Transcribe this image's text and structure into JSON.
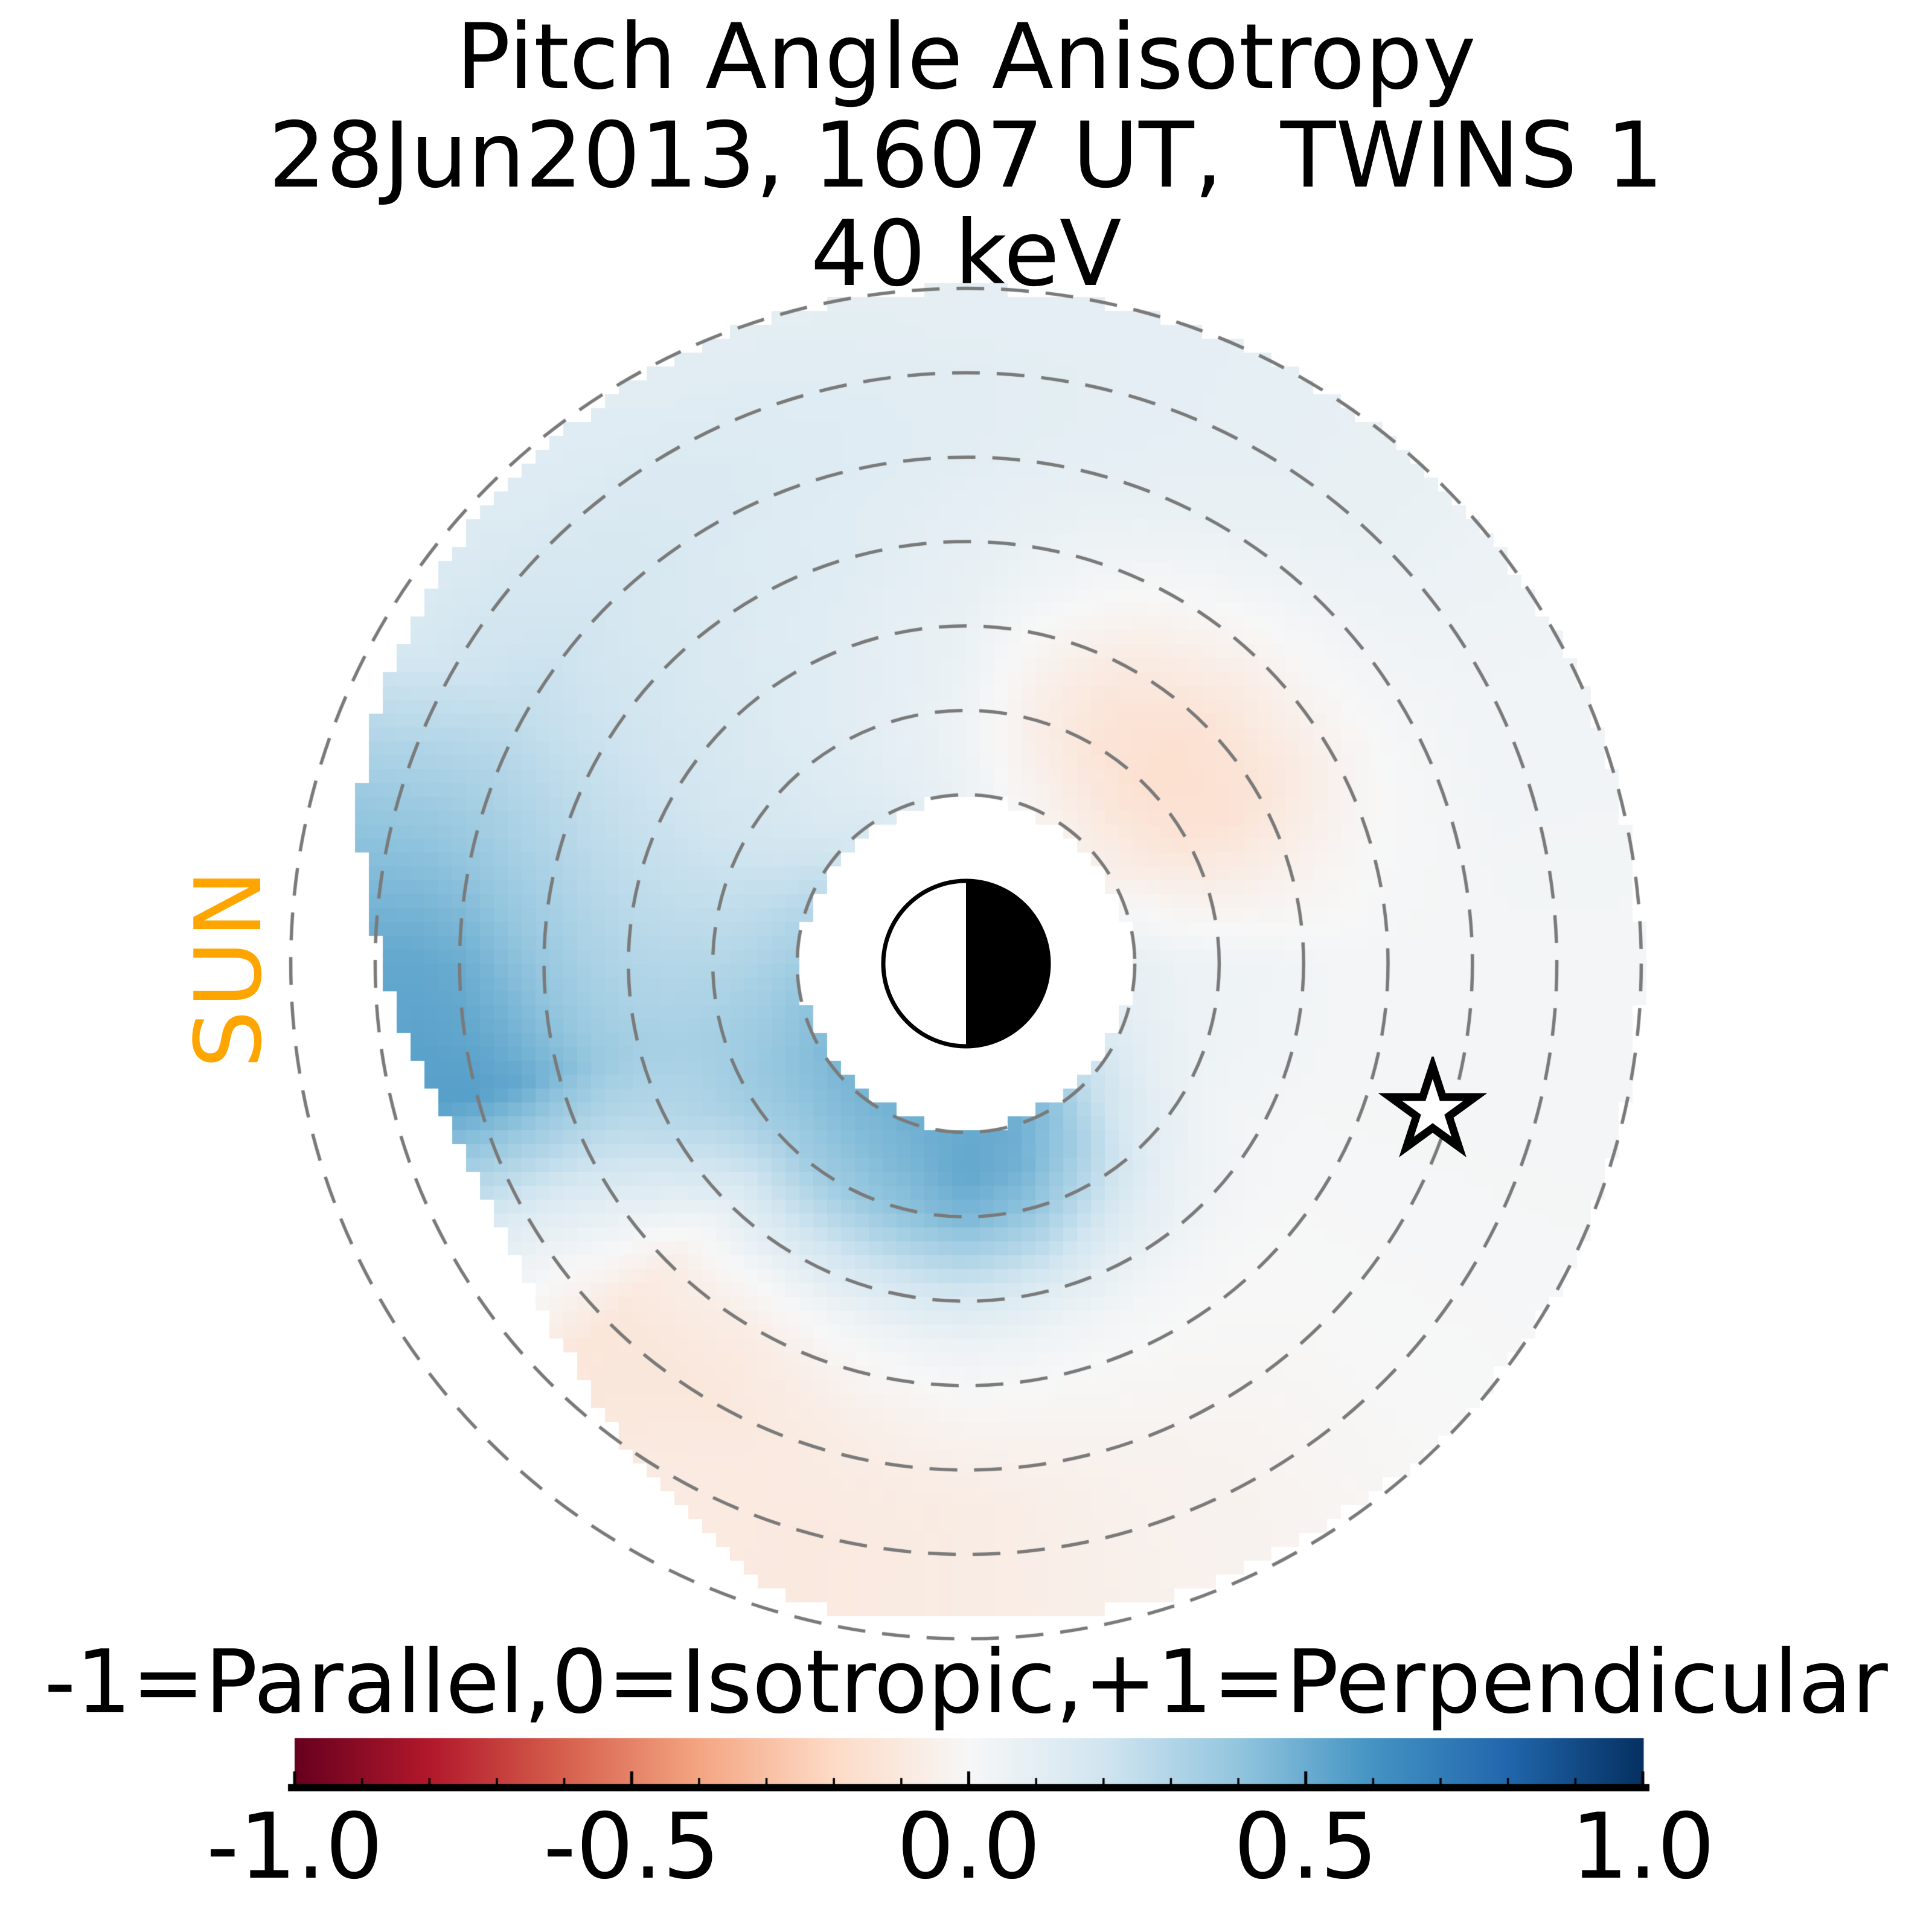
{
  "title": {
    "line1": "Pitch Angle Anisotropy",
    "line2": "28Jun2013, 1607 UT,  TWINS 1",
    "line3": "40 keV"
  },
  "sun_label": {
    "text": "SUN",
    "color": "#FFA500"
  },
  "plot": {
    "grid_color": "#7a7a7a",
    "grid_style": "dashed",
    "background": "#ffffff",
    "earth_marker": "half white (sunward/left) half black (anti-sunward/right) circle"
  },
  "colorbar": {
    "label": "-1=Parallel,0=Isotropic,+1=Perpendicular",
    "ticks": [
      "-1.0",
      "-0.5",
      "0.0",
      "0.5",
      "1.0"
    ],
    "tick_values": [
      -1.0,
      -0.5,
      0.0,
      0.5,
      1.0
    ],
    "minor_tick_step": 0.1,
    "range": [
      -1,
      1
    ],
    "colormap": "RdBu",
    "colormap_anchors": [
      "#67001f",
      "#b2182b",
      "#d6604d",
      "#f4a582",
      "#fddbc7",
      "#f7f7f7",
      "#d1e5f0",
      "#92c5de",
      "#4393c3",
      "#2166ac",
      "#053061"
    ]
  },
  "chart_data": {
    "type": "heatmap",
    "title": "Pitch Angle Anisotropy, 28Jun2013 1607 UT, TWINS 1, 40 keV",
    "description": "Polar map of pitch-angle anisotropy in the equatorial plane; Sun is to the left; dashed rings are L shells L=2..8; white inner disk is the masked region inside L~2 with the Earth symbol at the center; star = spacecraft footpoint; lower-left wedge has no data.",
    "angle_convention": "degrees counterclockwise from +x (right side of image); 180 = sunward (left)",
    "angles_deg": [
      0,
      15,
      30,
      45,
      60,
      75,
      90,
      105,
      120,
      135,
      150,
      165,
      180,
      195,
      210,
      225,
      240,
      255,
      270,
      285,
      300,
      315,
      330,
      345
    ],
    "L_values": [
      2,
      2.5,
      3,
      3.5,
      4,
      4.5,
      5,
      5.5,
      6,
      6.5,
      7,
      7.5,
      8
    ],
    "values": [
      [
        0.08,
        0.06,
        0.05,
        0.04,
        0.03,
        0.02,
        0.02,
        0.02,
        0.02,
        0.02,
        0.02,
        0.02,
        0.02
      ],
      [
        0.02,
        -0.02,
        -0.05,
        -0.05,
        -0.04,
        -0.02,
        0.0,
        0.01,
        0.02,
        0.03,
        0.03,
        0.03,
        0.03
      ],
      [
        -0.05,
        -0.1,
        -0.14,
        -0.15,
        -0.13,
        -0.09,
        -0.04,
        0.0,
        0.02,
        0.03,
        0.04,
        0.04,
        0.04
      ],
      [
        -0.06,
        -0.12,
        -0.16,
        -0.16,
        -0.14,
        -0.09,
        -0.04,
        0.01,
        0.04,
        0.06,
        0.07,
        0.07,
        0.07
      ],
      [
        -0.04,
        -0.09,
        -0.13,
        -0.13,
        -0.1,
        -0.05,
        0.0,
        0.04,
        0.07,
        0.08,
        0.09,
        0.09,
        0.09
      ],
      [
        0.0,
        -0.04,
        -0.06,
        -0.05,
        -0.02,
        0.02,
        0.05,
        0.07,
        0.09,
        0.1,
        0.1,
        0.1,
        0.1
      ],
      [
        0.06,
        0.05,
        0.05,
        0.06,
        0.07,
        0.08,
        0.09,
        0.1,
        0.11,
        0.11,
        0.11,
        0.1,
        0.1
      ],
      [
        0.1,
        0.09,
        0.09,
        0.1,
        0.1,
        0.11,
        0.12,
        0.12,
        0.13,
        0.13,
        0.12,
        0.11,
        0.1
      ],
      [
        0.14,
        0.12,
        0.12,
        0.12,
        0.13,
        0.13,
        0.14,
        0.14,
        0.15,
        0.15,
        0.14,
        0.12,
        0.11
      ],
      [
        0.18,
        0.15,
        0.15,
        0.15,
        0.16,
        0.16,
        0.17,
        0.17,
        0.18,
        0.17,
        0.16,
        0.14,
        0.13
      ],
      [
        0.24,
        0.2,
        0.19,
        0.19,
        0.2,
        0.21,
        0.22,
        0.23,
        0.24,
        0.22,
        0.2,
        0.17,
        0.15
      ],
      [
        0.3,
        0.26,
        0.24,
        0.24,
        0.25,
        0.27,
        0.3,
        0.33,
        0.36,
        0.38,
        0.38,
        0.38,
        0.38
      ],
      [
        0.35,
        0.31,
        0.29,
        0.29,
        0.3,
        0.33,
        0.38,
        0.44,
        0.5,
        0.52,
        0.52,
        0.52,
        0.52
      ],
      [
        0.4,
        0.36,
        0.34,
        0.33,
        0.34,
        0.38,
        0.45,
        0.52,
        0.55,
        0.55,
        0.55,
        0.55,
        0.55
      ],
      [
        0.44,
        0.4,
        0.36,
        0.31,
        0.27,
        0.22,
        0.18,
        0.15,
        0.13,
        0.12,
        0.12,
        0.12,
        0.12
      ],
      [
        0.46,
        0.41,
        0.34,
        0.22,
        0.1,
        0.0,
        -0.07,
        -0.1,
        -0.12,
        -0.12,
        -0.12,
        -0.12,
        -0.12
      ],
      [
        0.47,
        0.43,
        0.37,
        0.25,
        0.12,
        0.01,
        -0.07,
        -0.1,
        -0.11,
        -0.1,
        -0.09,
        -0.09,
        -0.09
      ],
      [
        0.49,
        0.46,
        0.41,
        0.28,
        0.14,
        0.04,
        -0.02,
        -0.06,
        -0.08,
        -0.09,
        -0.1,
        -0.1,
        -0.1
      ],
      [
        0.51,
        0.52,
        0.46,
        0.31,
        0.16,
        0.06,
        0.01,
        -0.03,
        -0.06,
        -0.08,
        -0.08,
        -0.08,
        -0.08
      ],
      [
        0.5,
        0.48,
        0.4,
        0.26,
        0.12,
        0.04,
        0.0,
        -0.02,
        -0.04,
        -0.05,
        -0.05,
        -0.05,
        -0.05
      ],
      [
        0.42,
        0.36,
        0.26,
        0.15,
        0.07,
        0.02,
        0.0,
        -0.01,
        -0.02,
        -0.03,
        -0.03,
        -0.03,
        -0.03
      ],
      [
        0.25,
        0.18,
        0.12,
        0.07,
        0.04,
        0.01,
        0.0,
        0.0,
        0.0,
        0.0,
        0.0,
        0.0,
        0.0
      ],
      [
        0.15,
        0.1,
        0.06,
        0.03,
        0.02,
        0.01,
        0.01,
        0.01,
        0.01,
        0.01,
        0.01,
        0.01,
        0.01
      ],
      [
        0.09,
        0.07,
        0.05,
        0.04,
        0.03,
        0.02,
        0.02,
        0.02,
        0.02,
        0.02,
        0.02,
        0.02,
        0.02
      ]
    ],
    "outer_edge_L": [
      8,
      8,
      8,
      8,
      8,
      8,
      8,
      8,
      7.95,
      7.85,
      7.7,
      7.45,
      6.9,
      6.45,
      6.3,
      6.6,
      7.2,
      7.85,
      7.8,
      7.85,
      7.9,
      7.95,
      8,
      8
    ],
    "inner_mask_L": 1.95,
    "l_shell_circles": [
      2,
      3,
      4,
      5,
      6,
      7,
      8
    ],
    "earth_radius_L": 1,
    "star_marker": {
      "angle_deg": -17.5,
      "L": 5.8
    },
    "value_range": [
      -1,
      1
    ],
    "legend_position": "bottom horizontal colorbar"
  }
}
